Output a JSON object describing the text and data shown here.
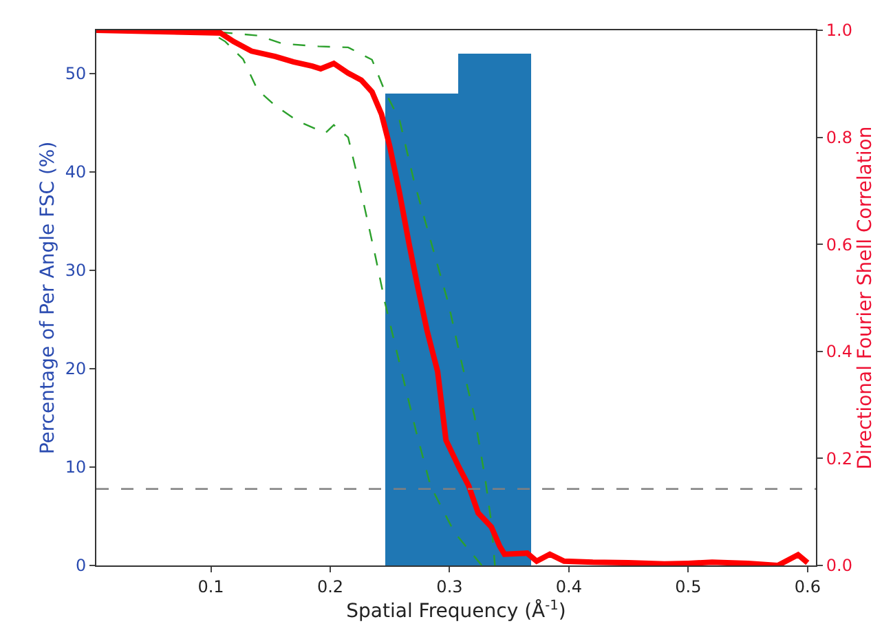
{
  "chart_data": {
    "type": "histogram",
    "xlabel": "Spatial Frequency (Å$^{-1}$)",
    "ylabel": "Percentage of Per Angle FSC (%)",
    "y2label": "Directional Fourier Shell Correlation",
    "bins": [
      0.246,
      0.307,
      0.368
    ],
    "values": [
      48,
      52
    ],
    "color": "#1f77b4",
    "series": [
      {
        "type": "line",
        "axis": "y2",
        "color": "#2ca02c",
        "line_style": "dashed",
        "x": [
          0.004,
          0.1,
          0.14,
          0.16,
          0.19,
          0.215,
          0.235,
          0.246,
          0.258,
          0.27,
          0.285,
          0.299,
          0.31,
          0.321,
          0.33,
          0.335,
          0.338
        ],
        "values": [
          1.0,
          0.998,
          0.99,
          0.975,
          0.97,
          0.968,
          0.945,
          0.885,
          0.833,
          0.72,
          0.6,
          0.49,
          0.38,
          0.278,
          0.16,
          0.08,
          0.0
        ]
      },
      {
        "type": "line",
        "axis": "y2",
        "color": "#2ca02c",
        "line_style": "dashed",
        "x": [
          0.004,
          0.1,
          0.112,
          0.127,
          0.139,
          0.154,
          0.173,
          0.196,
          0.203,
          0.215,
          0.226,
          0.238,
          0.246,
          0.26,
          0.272,
          0.284,
          0.304,
          0.327
        ],
        "values": [
          1.0,
          0.995,
          0.979,
          0.946,
          0.889,
          0.859,
          0.83,
          0.808,
          0.823,
          0.8,
          0.697,
          0.576,
          0.49,
          0.36,
          0.25,
          0.149,
          0.062,
          0.0
        ]
      },
      {
        "type": "line",
        "axis": "y2",
        "color": "#ff0000",
        "line_style": "solid",
        "x": [
          0.004,
          0.108,
          0.119,
          0.134,
          0.154,
          0.169,
          0.185,
          0.192,
          0.203,
          0.215,
          0.226,
          0.235,
          0.243,
          0.25,
          0.258,
          0.266,
          0.273,
          0.281,
          0.29,
          0.297,
          0.308,
          0.316,
          0.324,
          0.335,
          0.342,
          0.346,
          0.365,
          0.373,
          0.384,
          0.396,
          0.42,
          0.45,
          0.48,
          0.5,
          0.52,
          0.55,
          0.575,
          0.592,
          0.6
        ],
        "values": [
          1.0,
          0.995,
          0.979,
          0.961,
          0.951,
          0.941,
          0.933,
          0.928,
          0.938,
          0.92,
          0.907,
          0.885,
          0.843,
          0.782,
          0.697,
          0.602,
          0.524,
          0.44,
          0.362,
          0.234,
          0.183,
          0.149,
          0.098,
          0.072,
          0.036,
          0.021,
          0.023,
          0.008,
          0.021,
          0.008,
          0.006,
          0.005,
          0.003,
          0.004,
          0.006,
          0.004,
          0.0,
          0.02,
          0.005
        ]
      }
    ],
    "ref_lines": [
      {
        "axis": "y2",
        "value": 0.143,
        "color": "#808080",
        "line_style": "dashed"
      }
    ],
    "xlim": [
      0.004,
      0.607
    ],
    "xticks": [
      0.1,
      0.2,
      0.3,
      0.4,
      0.5,
      0.6
    ],
    "ylim": [
      0,
      54.4
    ],
    "yticks": [
      0,
      10,
      20,
      30,
      40,
      50
    ],
    "y2lim": [
      0,
      1.0
    ],
    "y2ticks": [
      {
        "value": 0,
        "label": "0.0"
      },
      0.2,
      0.4,
      0.6,
      0.8,
      {
        "value": 1.0,
        "label": "1.0"
      }
    ]
  }
}
